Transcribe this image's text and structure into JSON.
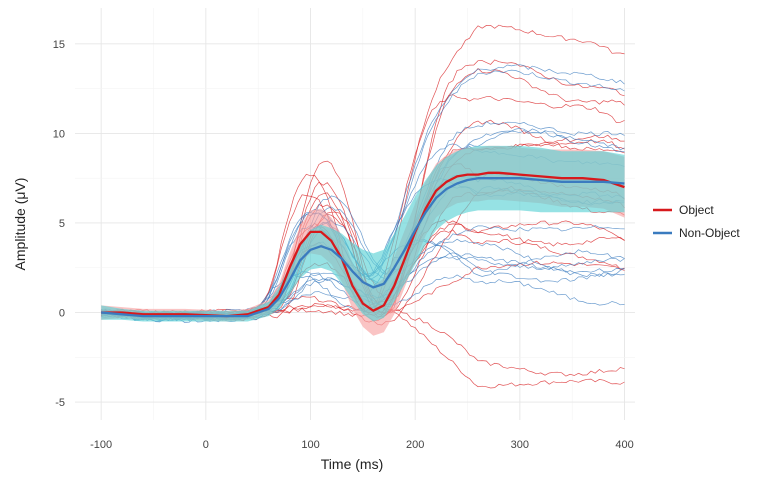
{
  "chart_data": {
    "type": "line",
    "title": "",
    "xlabel": "Time (ms)",
    "ylabel": "Amplitude (μV)",
    "xlim": [
      -125,
      410
    ],
    "ylim": [
      -6,
      17
    ],
    "x_ticks": [
      -100,
      0,
      100,
      200,
      300,
      400
    ],
    "x_tick_labels": [
      "-100",
      "0",
      "100",
      "200",
      "300",
      "400"
    ],
    "y_ticks": [
      -5,
      0,
      5,
      10,
      15
    ],
    "y_tick_labels": [
      "-5",
      "0",
      "5",
      "10",
      "15"
    ],
    "grid": true,
    "legend_position": "right",
    "x": [
      -100,
      -80,
      -60,
      -40,
      -20,
      0,
      20,
      40,
      60,
      70,
      80,
      90,
      100,
      110,
      120,
      130,
      140,
      150,
      160,
      170,
      180,
      190,
      200,
      210,
      220,
      230,
      240,
      250,
      260,
      270,
      280,
      300,
      320,
      340,
      360,
      380,
      400
    ],
    "series": [
      {
        "name": "Object",
        "color": "#d7191c",
        "ribbon_color": "#f8a5a5",
        "values": [
          0.0,
          0.0,
          -0.1,
          -0.1,
          -0.1,
          -0.15,
          -0.2,
          -0.1,
          0.3,
          1.0,
          2.5,
          3.8,
          4.5,
          4.5,
          4.0,
          3.0,
          1.5,
          0.5,
          0.1,
          0.4,
          1.5,
          3.0,
          4.5,
          5.8,
          6.8,
          7.3,
          7.6,
          7.7,
          7.7,
          7.8,
          7.8,
          7.7,
          7.6,
          7.5,
          7.5,
          7.4,
          7.0
        ],
        "ribbon_half_width": [
          0.4,
          0.3,
          0.3,
          0.3,
          0.3,
          0.3,
          0.3,
          0.3,
          0.4,
          0.6,
          0.8,
          1.0,
          1.2,
          1.3,
          1.3,
          1.3,
          1.3,
          1.3,
          1.4,
          1.5,
          1.6,
          1.6,
          1.6,
          1.5,
          1.5,
          1.5,
          1.5,
          1.5,
          1.5,
          1.5,
          1.5,
          1.5,
          1.5,
          1.6,
          1.6,
          1.6,
          1.7
        ]
      },
      {
        "name": "Non-Object",
        "color": "#3a7bbf",
        "ribbon_color": "#5ed3d6",
        "values": [
          0.0,
          -0.1,
          -0.2,
          -0.2,
          -0.2,
          -0.2,
          -0.2,
          -0.2,
          0.2,
          0.8,
          1.8,
          2.9,
          3.5,
          3.7,
          3.5,
          3.0,
          2.3,
          1.7,
          1.4,
          1.6,
          2.5,
          3.5,
          4.6,
          5.6,
          6.4,
          6.9,
          7.2,
          7.4,
          7.5,
          7.5,
          7.5,
          7.5,
          7.4,
          7.3,
          7.3,
          7.3,
          7.2
        ],
        "ribbon_half_width": [
          0.4,
          0.3,
          0.3,
          0.3,
          0.3,
          0.3,
          0.3,
          0.3,
          0.4,
          0.6,
          0.8,
          1.0,
          1.1,
          1.2,
          1.2,
          1.4,
          1.6,
          1.8,
          1.9,
          1.9,
          1.9,
          1.9,
          1.9,
          1.8,
          1.8,
          1.8,
          1.8,
          1.8,
          1.8,
          1.8,
          1.8,
          1.8,
          1.8,
          1.7,
          1.7,
          1.7,
          1.6
        ]
      }
    ],
    "individual_traces": {
      "count_per_condition": 16,
      "Object": {
        "color": "#d7191c",
        "peak_spread": 1.9,
        "final_spread": 2.4
      },
      "Non-Object": {
        "color": "#3a7bbf",
        "peak_spread": 1.4,
        "final_spread": 2.0
      }
    }
  }
}
